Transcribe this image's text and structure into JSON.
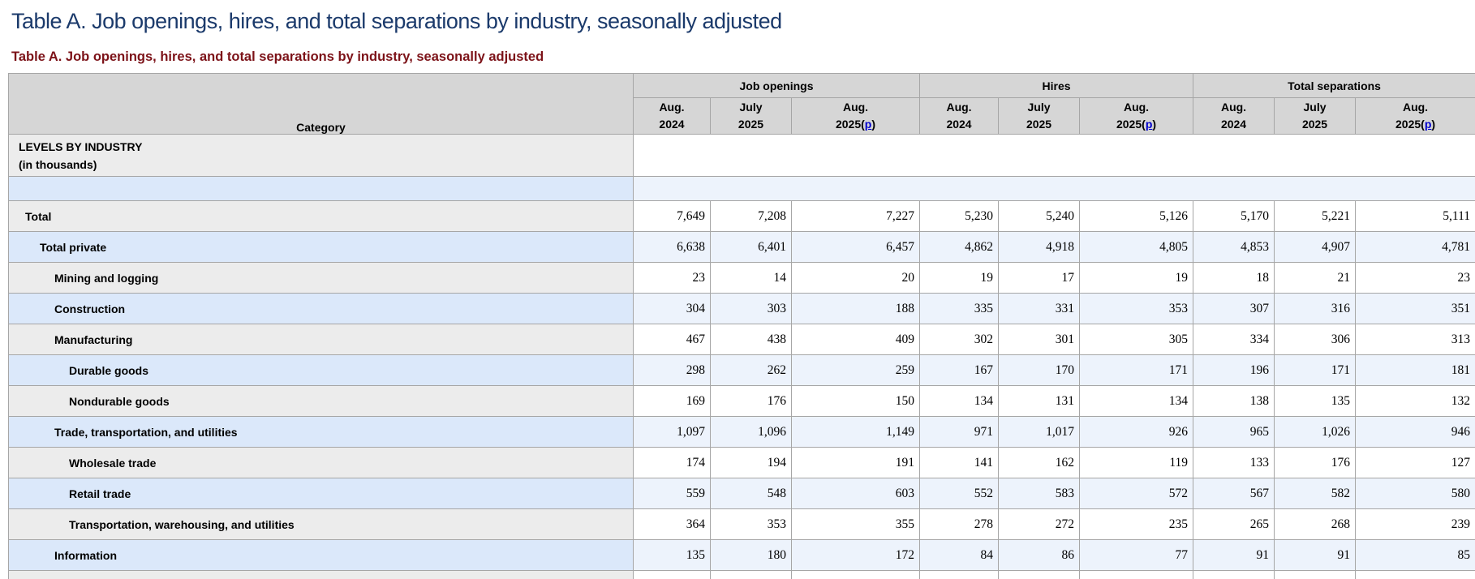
{
  "page_title": "Table A. Job openings, hires, and total separations by industry, seasonally adjusted",
  "table_caption": "Table A. Job openings, hires, and total separations by industry, seasonally adjusted",
  "colors": {
    "title": "#1b3a6b",
    "caption": "#7c1218",
    "header_bg": "#d6d6d6",
    "row_gray": "#ececec",
    "row_blue": "#dbe8fa",
    "cell_white": "#ffffff",
    "cell_blue": "#edf3fc",
    "border": "#a6a6a6",
    "link": "#0000cc"
  },
  "table": {
    "category_header": "Category",
    "groups": [
      {
        "label": "Job openings"
      },
      {
        "label": "Hires"
      },
      {
        "label": "Total separations"
      }
    ],
    "periods": [
      {
        "month": "Aug.",
        "year": "2024",
        "preliminary": false
      },
      {
        "month": "July",
        "year": "2025",
        "preliminary": false
      },
      {
        "month": "Aug.",
        "year": "2025",
        "preliminary": true
      }
    ],
    "preliminary_marker": "p",
    "section": {
      "line1": "LEVELS BY INDUSTRY",
      "line2": "(in thousands)"
    },
    "rows": [
      {
        "kind": "section",
        "shade": "gray"
      },
      {
        "kind": "spacer",
        "shade": "blue"
      },
      {
        "kind": "data",
        "shade": "gray",
        "indent": 0,
        "label": "Total",
        "values": [
          "7,649",
          "7,208",
          "7,227",
          "5,230",
          "5,240",
          "5,126",
          "5,170",
          "5,221",
          "5,111"
        ]
      },
      {
        "kind": "data",
        "shade": "blue",
        "indent": 1,
        "label": "Total private",
        "values": [
          "6,638",
          "6,401",
          "6,457",
          "4,862",
          "4,918",
          "4,805",
          "4,853",
          "4,907",
          "4,781"
        ]
      },
      {
        "kind": "data",
        "shade": "gray",
        "indent": 2,
        "label": "Mining and logging",
        "values": [
          "23",
          "14",
          "20",
          "19",
          "17",
          "19",
          "18",
          "21",
          "23"
        ]
      },
      {
        "kind": "data",
        "shade": "blue",
        "indent": 2,
        "label": "Construction",
        "values": [
          "304",
          "303",
          "188",
          "335",
          "331",
          "353",
          "307",
          "316",
          "351"
        ]
      },
      {
        "kind": "data",
        "shade": "gray",
        "indent": 2,
        "label": "Manufacturing",
        "values": [
          "467",
          "438",
          "409",
          "302",
          "301",
          "305",
          "334",
          "306",
          "313"
        ]
      },
      {
        "kind": "data",
        "shade": "blue",
        "indent": 3,
        "label": "Durable goods",
        "values": [
          "298",
          "262",
          "259",
          "167",
          "170",
          "171",
          "196",
          "171",
          "181"
        ]
      },
      {
        "kind": "data",
        "shade": "gray",
        "indent": 3,
        "label": "Nondurable goods",
        "values": [
          "169",
          "176",
          "150",
          "134",
          "131",
          "134",
          "138",
          "135",
          "132"
        ]
      },
      {
        "kind": "data",
        "shade": "blue",
        "indent": 2,
        "label": "Trade, transportation, and utilities",
        "values": [
          "1,097",
          "1,096",
          "1,149",
          "971",
          "1,017",
          "926",
          "965",
          "1,026",
          "946"
        ]
      },
      {
        "kind": "data",
        "shade": "gray",
        "indent": 3,
        "label": "Wholesale trade",
        "values": [
          "174",
          "194",
          "191",
          "141",
          "162",
          "119",
          "133",
          "176",
          "127"
        ]
      },
      {
        "kind": "data",
        "shade": "blue",
        "indent": 3,
        "label": "Retail trade",
        "values": [
          "559",
          "548",
          "603",
          "552",
          "583",
          "572",
          "567",
          "582",
          "580"
        ]
      },
      {
        "kind": "data",
        "shade": "gray",
        "indent": 3,
        "label": "Transportation, warehousing, and utilities",
        "values": [
          "364",
          "353",
          "355",
          "278",
          "272",
          "235",
          "265",
          "268",
          "239"
        ]
      },
      {
        "kind": "data",
        "shade": "blue",
        "indent": 2,
        "label": "Information",
        "values": [
          "135",
          "180",
          "172",
          "84",
          "86",
          "77",
          "91",
          "91",
          "85"
        ]
      },
      {
        "kind": "partial",
        "shade": "gray"
      }
    ]
  }
}
